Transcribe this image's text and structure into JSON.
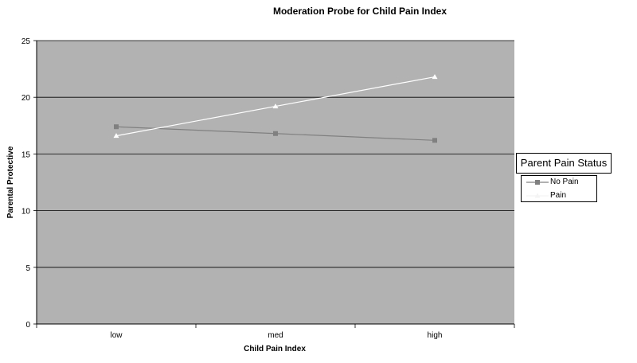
{
  "chart_data": {
    "type": "line",
    "title": "Moderation Probe for Child  Pain Index",
    "xlabel": "Child Pain Index",
    "ylabel": "Parental Protective",
    "categories": [
      "low",
      "med",
      "high"
    ],
    "ylim": [
      0,
      25
    ],
    "yticks": [
      0,
      5,
      10,
      15,
      20,
      25
    ],
    "grid": true,
    "legend_title": "Parent Pain Status",
    "legend_position": "right",
    "plot_background": "#b2b2b2",
    "series": [
      {
        "name": "No Pain",
        "values": [
          17.4,
          16.8,
          16.2
        ],
        "color": "#808080",
        "marker": "square"
      },
      {
        "name": "Pain",
        "values": [
          16.6,
          19.2,
          21.8
        ],
        "color": "#ffffff",
        "marker": "triangle"
      }
    ]
  }
}
